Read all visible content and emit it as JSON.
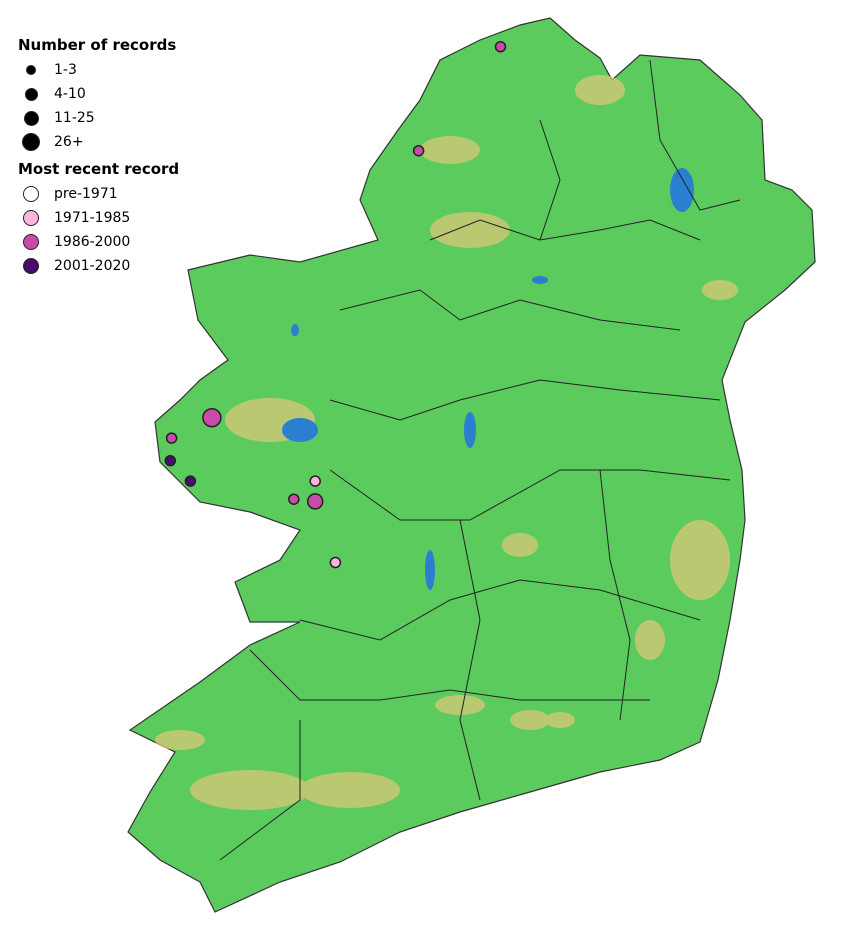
{
  "legend": {
    "size_title": "Number of records",
    "size_classes": [
      {
        "label": "1-3"
      },
      {
        "label": "4-10"
      },
      {
        "label": "11-25"
      },
      {
        "label": "26+"
      }
    ],
    "colour_title": "Most recent record",
    "colour_classes": [
      {
        "label": "pre-1971",
        "color": "#ffffff"
      },
      {
        "label": "1971-1985",
        "color": "#fbb4e0"
      },
      {
        "label": "1986-2000",
        "color": "#c84aab"
      },
      {
        "label": "2001-2020",
        "color": "#4b0a6e"
      }
    ]
  },
  "map": {
    "land_color": "#5ccb5e",
    "upland_color": "#d9c878",
    "water_color": "#2a7fd0",
    "boundary_color": "#222222",
    "records": [
      {
        "lon": -7.74,
        "lat": 55.26,
        "size_class": "1-3",
        "period": "1986-2000"
      },
      {
        "lon": -8.35,
        "lat": 54.8,
        "size_class": "1-3",
        "period": "1986-2000"
      },
      {
        "lon": -9.89,
        "lat": 53.62,
        "size_class": "26+",
        "period": "1986-2000"
      },
      {
        "lon": -10.19,
        "lat": 53.53,
        "size_class": "1-3",
        "period": "1986-2000"
      },
      {
        "lon": -10.2,
        "lat": 53.43,
        "size_class": "1-3",
        "period": "2001-2020"
      },
      {
        "lon": -10.05,
        "lat": 53.34,
        "size_class": "1-3",
        "period": "2001-2020"
      },
      {
        "lon": -9.12,
        "lat": 53.34,
        "size_class": "1-3",
        "period": "1971-1985"
      },
      {
        "lon": -9.28,
        "lat": 53.26,
        "size_class": "1-3",
        "period": "1986-2000"
      },
      {
        "lon": -9.12,
        "lat": 53.25,
        "size_class": "11-25",
        "period": "1986-2000"
      },
      {
        "lon": -8.97,
        "lat": 52.98,
        "size_class": "1-3",
        "period": "1971-1985"
      }
    ]
  }
}
